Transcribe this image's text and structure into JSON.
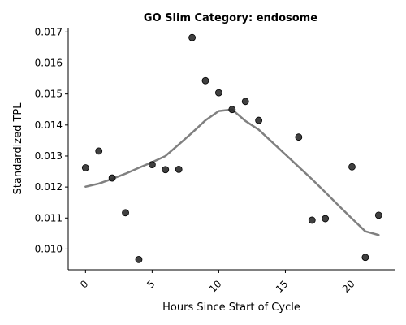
{
  "chart_data": {
    "type": "scatter",
    "title": "GO Slim Category: endosome",
    "xlabel": "Hours Since Start of Cycle",
    "ylabel": "Standardized TPL",
    "xlim": [
      -1.3,
      23.2
    ],
    "ylim": [
      0.00933,
      0.01714
    ],
    "xticks": [
      0,
      5,
      10,
      15,
      20
    ],
    "yticks": [
      0.01,
      0.011,
      0.012,
      0.013,
      0.014,
      0.015,
      0.016,
      0.017
    ],
    "grid": false,
    "points": {
      "x": [
        0,
        1,
        2,
        3,
        4,
        5,
        6,
        7,
        8,
        9,
        10,
        11,
        12,
        13,
        16,
        17,
        18,
        20,
        21,
        22
      ],
      "y": [
        0.01262,
        0.01316,
        0.01229,
        0.01117,
        0.00966,
        0.01272,
        0.01256,
        0.01257,
        0.01682,
        0.01543,
        0.01504,
        0.0145,
        0.01476,
        0.01415,
        0.01361,
        0.01093,
        0.01098,
        0.01265,
        0.00973,
        0.01109
      ],
      "color": "#2b2b2b"
    },
    "trend_line": {
      "x": [
        0,
        1,
        2,
        3,
        4,
        5,
        6,
        7,
        8,
        9,
        10,
        11,
        12,
        13,
        14,
        15,
        16,
        17,
        18,
        19,
        20,
        21,
        22
      ],
      "y": [
        0.01201,
        0.01211,
        0.01226,
        0.01243,
        0.01262,
        0.0128,
        0.013,
        0.01337,
        0.01375,
        0.01415,
        0.01445,
        0.0145,
        0.01413,
        0.01385,
        0.01345,
        0.01305,
        0.01265,
        0.01225,
        0.01183,
        0.0114,
        0.01098,
        0.01057,
        0.01045
      ],
      "color": "#808080"
    }
  }
}
